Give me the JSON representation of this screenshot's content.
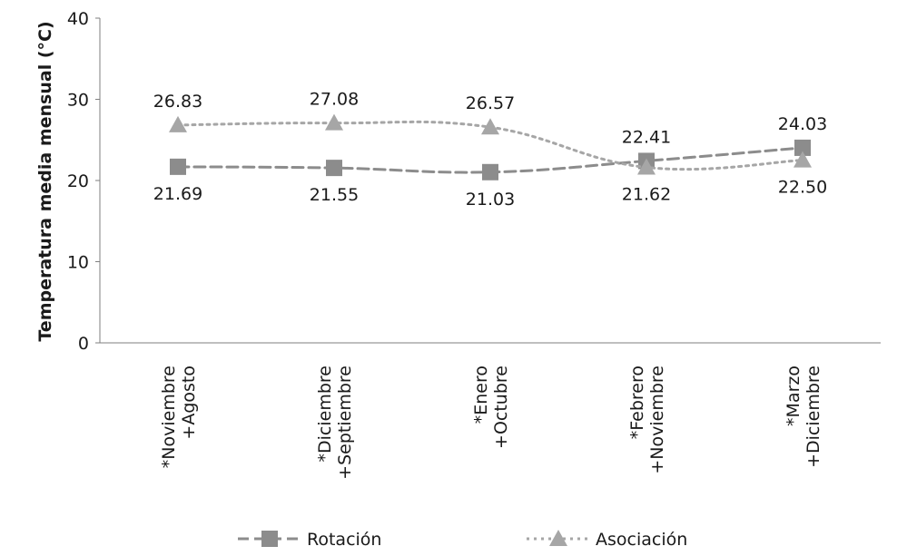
{
  "chart_data": {
    "type": "line",
    "ylabel": "Temperatura media mensual (°C)",
    "xlabel": "",
    "ylim": [
      0,
      40
    ],
    "yticks": [
      0,
      10,
      20,
      30,
      40
    ],
    "grid": false,
    "legend_position": "bottom",
    "categories": [
      [
        "*Noviembre",
        "+Agosto"
      ],
      [
        "*Diciembre",
        "+Septiembre"
      ],
      [
        "*Enero",
        "+Octubre"
      ],
      [
        "*Febrero",
        "+Noviembre"
      ],
      [
        "*Marzo",
        "+Diciembre"
      ]
    ],
    "series": [
      {
        "name": "Rotación",
        "marker": "square",
        "line_style": "dashed",
        "color": "#8c8c8c",
        "values": [
          21.69,
          21.55,
          21.03,
          22.41,
          24.03
        ],
        "labels": [
          "21.69",
          "21.55",
          "21.03",
          "22.41",
          "24.03"
        ],
        "label_side": [
          "below",
          "below",
          "below",
          "above",
          "above"
        ]
      },
      {
        "name": "Asociación",
        "marker": "triangle",
        "line_style": "dotted",
        "color": "#a6a6a6",
        "values": [
          26.83,
          27.08,
          26.57,
          21.62,
          22.5
        ],
        "labels": [
          "26.83",
          "27.08",
          "26.57",
          "21.62",
          "22.50"
        ],
        "label_side": [
          "above",
          "above",
          "above",
          "below",
          "below"
        ]
      }
    ]
  }
}
